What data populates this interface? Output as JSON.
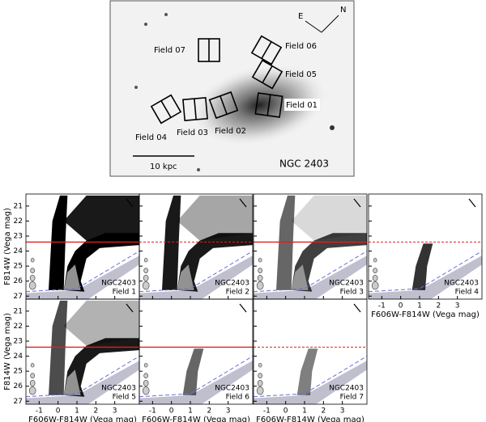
{
  "image": {
    "fields": [
      "Field 01",
      "Field 02",
      "Field 03",
      "Field 04",
      "Field 05",
      "Field 06",
      "Field 07"
    ],
    "scale_bar": "10 kpc",
    "object": "NGC 2403",
    "compass": [
      "E",
      "N"
    ]
  },
  "chart_data": {
    "type": "scatter",
    "xlabel": "F606W-F814W (Vega mag)",
    "ylabel": "F814W (Vega mag)",
    "xlim": [
      -1.7,
      4.3
    ],
    "ylim": [
      27.2,
      20.2
    ],
    "y_inverted": true,
    "xticks": [
      -1,
      0,
      1,
      2,
      3
    ],
    "yticks": [
      21,
      22,
      23,
      24,
      25,
      26,
      27
    ],
    "completeness_x": [
      -1.7,
      1,
      4.3
    ],
    "completeness_y": [
      26.7,
      26.5,
      24.0
    ],
    "completeness_color": "#6b6bdc",
    "trgb_color": "#e02020",
    "panels": [
      {
        "galaxy": "NGC2403",
        "field": "Field  1",
        "trgb": 23.4,
        "trgb_style": "solid"
      },
      {
        "galaxy": "NGC2403",
        "field": "Field  2",
        "trgb": 23.4,
        "trgb_style": "dotted"
      },
      {
        "galaxy": "NGC2403",
        "field": "Field  3",
        "trgb": 23.4,
        "trgb_style": "solid"
      },
      {
        "galaxy": "NGC2403",
        "field": "Field  4",
        "trgb": 23.4,
        "trgb_style": "dotted"
      },
      {
        "galaxy": "NGC2403",
        "field": "Field  5",
        "trgb": 23.4,
        "trgb_style": "solid"
      },
      {
        "galaxy": "NGC2403",
        "field": "Field  6",
        "trgb": 23.4,
        "trgb_style": "solid"
      },
      {
        "galaxy": "NGC2403",
        "field": "Field  7",
        "trgb": 23.4,
        "trgb_style": "dotted"
      }
    ]
  }
}
